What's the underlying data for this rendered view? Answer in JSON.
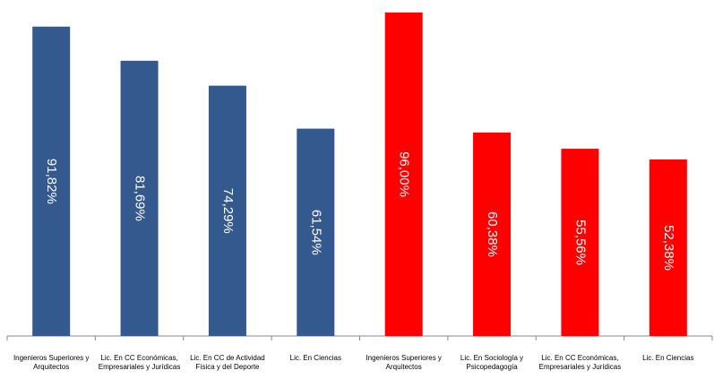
{
  "chart_data": {
    "type": "bar",
    "categories": [
      "Ingenieros Superiores y Arquitectos",
      "Lic. En CC Económicas, Empresariales y Jurídicas",
      "Lic. En CC de Actividad Física y del Deporte",
      "Lic. En Ciencias",
      "Ingenieros Superiores y Arquitectos",
      "Lic. En Sociología y Psicopedagogía",
      "Lic. En CC Económicas, Empresariales y Jurídicas",
      "Lic. En Ciencias"
    ],
    "values": [
      91.82,
      81.69,
      74.29,
      61.54,
      96.0,
      60.38,
      55.56,
      52.38
    ],
    "value_labels": [
      "91,82%",
      "81,69%",
      "74,29%",
      "61,54%",
      "96,00%",
      "60,38%",
      "55,56%",
      "52,38%"
    ],
    "colors": [
      "#34598f",
      "#34598f",
      "#34598f",
      "#34598f",
      "#ff0000",
      "#ff0000",
      "#ff0000",
      "#ff0000"
    ],
    "ylim": [
      0,
      96
    ]
  }
}
